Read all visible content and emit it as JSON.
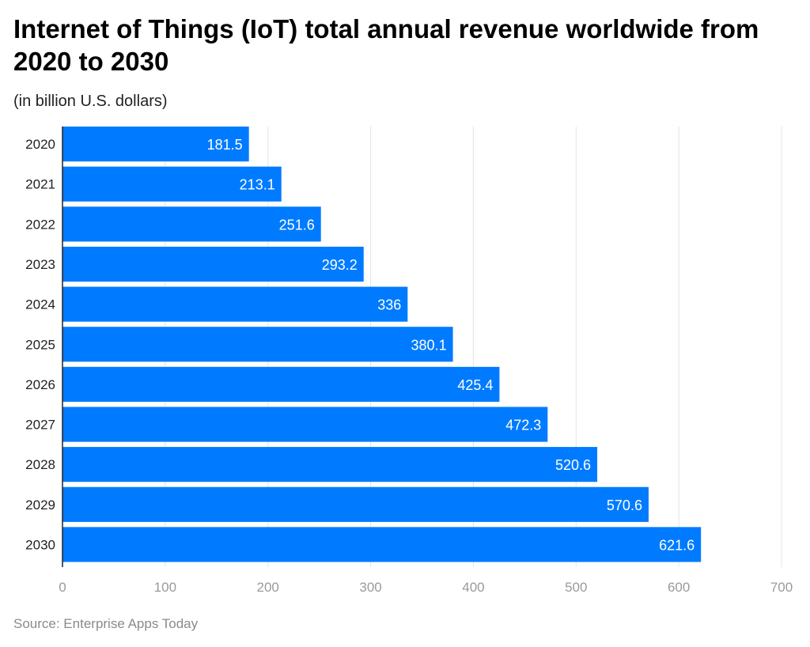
{
  "chart_data": {
    "type": "bar",
    "orientation": "horizontal",
    "title": "Internet of Things (IoT) total annual revenue worldwide from 2020 to 2030",
    "subtitle": "(in billion U.S. dollars)",
    "categories": [
      "2020",
      "2021",
      "2022",
      "2023",
      "2024",
      "2025",
      "2026",
      "2027",
      "2028",
      "2029",
      "2030"
    ],
    "values": [
      181.5,
      213.1,
      251.6,
      293.2,
      336,
      380.1,
      425.4,
      472.3,
      520.6,
      570.6,
      621.6
    ],
    "xlim": [
      0,
      700
    ],
    "xticks": [
      0,
      100,
      200,
      300,
      400,
      500,
      600,
      700
    ],
    "grid": true,
    "bar_color": "#007bff",
    "source": "Source: Enterprise Apps Today"
  }
}
